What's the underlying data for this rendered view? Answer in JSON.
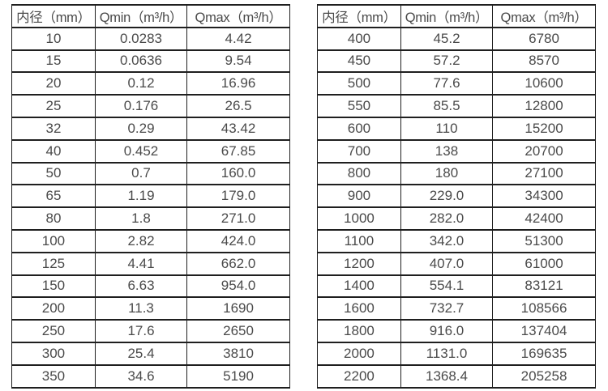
{
  "colors": {
    "background": "#ffffff",
    "border": "#1f1f1f",
    "text": "#4a4a4a"
  },
  "tables": [
    {
      "name": "small-diameter-flow-table",
      "headers": [
        "内径（mm）",
        "Qmin（m³/h）",
        "Qmax（m³/h）"
      ],
      "rows": [
        [
          "10",
          "0.0283",
          "4.42"
        ],
        [
          "15",
          "0.0636",
          "9.54"
        ],
        [
          "20",
          "0.12",
          "16.96"
        ],
        [
          "25",
          "0.176",
          "26.5"
        ],
        [
          "32",
          "0.29",
          "43.42"
        ],
        [
          "40",
          "0.452",
          "67.85"
        ],
        [
          "50",
          "0.7",
          "160.0"
        ],
        [
          "65",
          "1.19",
          "179.0"
        ],
        [
          "80",
          "1.8",
          "271.0"
        ],
        [
          "100",
          "2.82",
          "424.0"
        ],
        [
          "125",
          "4.41",
          "662.0"
        ],
        [
          "150",
          "6.63",
          "954.0"
        ],
        [
          "200",
          "11.3",
          "1690"
        ],
        [
          "250",
          "17.6",
          "2650"
        ],
        [
          "300",
          "25.4",
          "3810"
        ],
        [
          "350",
          "34.6",
          "5190"
        ]
      ]
    },
    {
      "name": "large-diameter-flow-table",
      "headers": [
        "内径（mm）",
        "Qmin（m³/h）",
        "Qmax（m³/h）"
      ],
      "rows": [
        [
          "400",
          "45.2",
          "6780"
        ],
        [
          "450",
          "57.2",
          "8570"
        ],
        [
          "500",
          "77.6",
          "10600"
        ],
        [
          "550",
          "85.5",
          "12800"
        ],
        [
          "600",
          "110",
          "15200"
        ],
        [
          "700",
          "138",
          "20700"
        ],
        [
          "800",
          "180",
          "27100"
        ],
        [
          "900",
          "229.0",
          "34300"
        ],
        [
          "1000",
          "282.0",
          "42400"
        ],
        [
          "1100",
          "342.0",
          "51300"
        ],
        [
          "1200",
          "407.0",
          "61000"
        ],
        [
          "1400",
          "554.1",
          "83121"
        ],
        [
          "1600",
          "732.7",
          "108566"
        ],
        [
          "1800",
          "916.0",
          "137404"
        ],
        [
          "2000",
          "1131.0",
          "169635"
        ],
        [
          "2200",
          "1368.4",
          "205258"
        ]
      ]
    }
  ]
}
